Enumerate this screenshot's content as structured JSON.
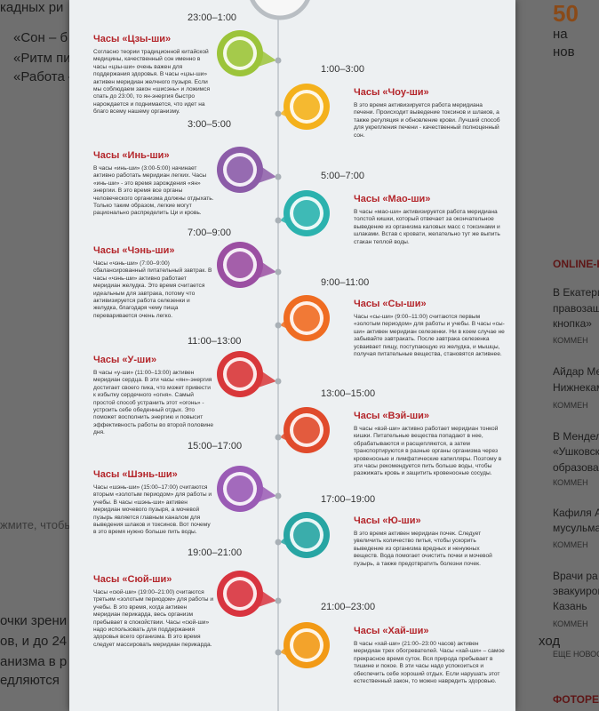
{
  "background": {
    "left": [
      "кадных ри",
      "«Сон – б",
      "«Ритм пи",
      "«Работа –",
      "жмите, чтобы",
      "очки зрени",
      "ов, и до 24",
      "анизма в р",
      "едляются"
    ],
    "right": [
      "50",
      "на",
      "нов",
      "ONLINE-НО",
      "В Екатери",
      "правозащ",
      "кнопка»",
      "КОММЕН",
      "Айдар Ме",
      "Нижнекам",
      "КОММЕН",
      "В Менделе",
      "«Ушковск",
      "образова",
      "КОММЕН",
      "Кафиля А",
      "мусульма",
      "КОММЕН",
      "Врачи ра",
      "эвакуиров",
      "Казань",
      "КОММЕН",
      "ЕЩЕ НОВОС",
      "ФОТОРЕП",
      "ход"
    ]
  },
  "infographic": {
    "entries": [
      {
        "time": "23:00–1:00",
        "title": "Часы «Цзы-ши»",
        "color": "#9cc43a",
        "text": "Согласно теории традиционной китайской медицины, качественный сон именно в часы «цзы-ши» очень важен для поддержания здоровья. В часы «цзы-ши» активен меридиан желчного пузыря. Если мы соблюдаем закон «шисэнь» и ложимся спать до 23:00, то ян-энергия быстро нарождается и поднимается, что идет на благо всему нашему организму."
      },
      {
        "time": "1:00–3:00",
        "title": "Часы «Чоу-ши»",
        "color": "#f4b11c",
        "text": "В это время активизируется работа меридиана печени. Происходит выведение токсинов и шлаков, а также регуляция и обновление крови. Лучший способ для укрепления печени - качественный полноценный сон."
      },
      {
        "time": "3:00–5:00",
        "title": "Часы «Инь-ши»",
        "color": "#8c5ca8",
        "text": "В часы «инь-ши» (3:00-5:00) начинает активно работать меридиан легких. Часы «инь-ши» - это время зарождения «ян» энергии. В это время все органы человеческого организма должны отдыхать. Только таким образом, легкие могут рационально распределить Ци и кровь."
      },
      {
        "time": "5:00–7:00",
        "title": "Часы «Мао-ши»",
        "color": "#2bb2ae",
        "text": "В часы «мао-ши» активизируется работа меридиана толстой кишки, который отвечает за окончательное выведение из организма каловых масс с токсинами и шлаками. Встав с кровати, желательно тут же выпить стакан теплой воды."
      },
      {
        "time": "7:00–9:00",
        "title": "Часы «Чэнь-ши»",
        "color": "#9b4fa2",
        "text": "Часы «чэнь-ши» (7:00–9:00) сбалансированный питательный завтрак. В часы «чэнь-ши» активно работает меридиан желудка. Это время считается идеальным для завтрака, потому что активизируется работа селезенки и желудка, благодаря чему пища переваривается очень легко."
      },
      {
        "time": "9:00–11:00",
        "title": "Часы «Сы-ши»",
        "color": "#ef6c22",
        "text": "Часы «сы-ши» (9:00–11:00) считаются первым «золотым периодом» для работы и учебы. В часы «сы-ши» активен меридиан селезенки. Ни в коем случае не забывайте завтракать. После завтрака селезенка усваивает пищу, поступающую из желудка, и мышцы, получая питательные вещества, становятся активнее."
      },
      {
        "time": "11:00–13:00",
        "title": "Часы «У-ши»",
        "color": "#d8373a",
        "text": "В часы «у-ши» (11:00–13:00) активен меридиан сердца. В эти часы «ян»-энергия достигает своего пика, что может привести к избытку сердечного «огня». Самый простой способ устранить этот «огонь» - устроить себе обеденный отдых. Это поможет восполнить энергию и повысит эффективность работы во второй половине дня."
      },
      {
        "time": "13:00–15:00",
        "title": "Часы «Вэй-ши»",
        "color": "#e04a2b",
        "text": "В часы «вэй-ши» активно работает меридиан тонкой кишки. Питательные вещества попадают в нее, обрабатываются и расщепляются, а затем транспортируются в разные органы организма через кровеносные и лимфатические капилляры. Поэтому в эти часы рекомендуется пить больше воды, чтобы разжижать кровь и защитить кровеносные сосуды."
      },
      {
        "time": "15:00–17:00",
        "title": "Часы «Шэнь-ши»",
        "color": "#9a5bb5",
        "text": "Часы «шэнь-ши» (15:00–17:00) считаются вторым «золотым периодом» для работы и учебы. В часы «шэнь-ши» активен меридиан мочевого пузыря, а мочевой пузырь является главным каналом для выведения шлаков и токсинов. Вот почему в это время нужно больше пить воды."
      },
      {
        "time": "17:00–19:00",
        "title": "Часы «Ю-ши»",
        "color": "#27a5a3",
        "text": "В это время активен меридиан почек. Следует увеличить количество питья, чтобы ускорить выведение из организма вредных и ненужных веществ. Вода помогает очистить почки и мочевой пузырь, а также предотвратить болезни почек."
      },
      {
        "time": "19:00–21:00",
        "title": "Часы «Сюй-ши»",
        "color": "#d8343f",
        "text": "Часы «сюй-ши» (19:00–21:00) считаются третьим «золотым периодом» для работы и учебы. В это время, когда активен меридиан перикарда, весь организм пребывает в спокойствии. Часы «сюй-ши» надо использовать для поддержания здоровья всего организма. В это время следует массировать меридиан перикарда."
      },
      {
        "time": "21:00–23:00",
        "title": "Часы «Хай-ши»",
        "color": "#f29a16",
        "text": "В часы «хай-ши» (21:00–23:00 часов) активен меридиан трех обогревателей. Часы «хай-ши» – самое прекрасное время суток. Вся природа пребывает в тишине и покое. В эти часы надо успокоиться и обеспечить себе хороший отдых. Если нарушать этот естественный закон, то можно навредить здоровью."
      }
    ]
  }
}
